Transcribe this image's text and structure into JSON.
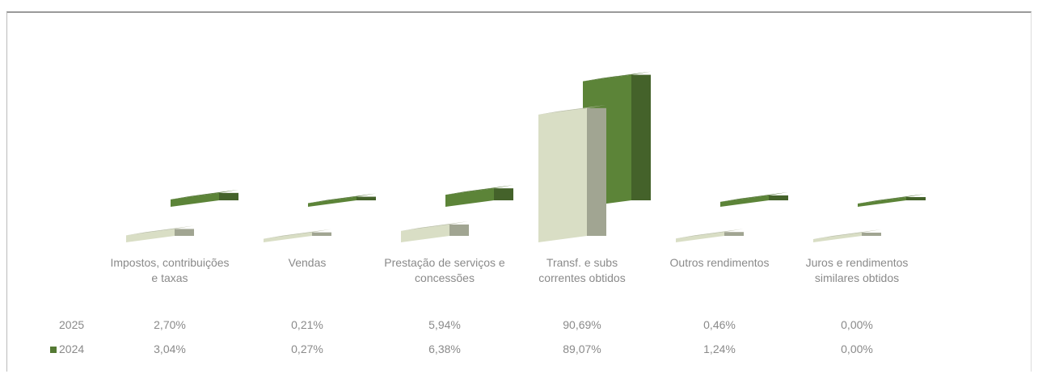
{
  "chart_data": {
    "type": "bar3d",
    "categories": [
      "Impostos, contribuições e taxas",
      "Vendas",
      "Prestação de serviços e concessões",
      "Transf. e subs correntes obtidos",
      "Outros rendimentos",
      "Juros e rendimentos similares obtidos"
    ],
    "series": [
      {
        "name": "2025",
        "color": "#c9ceb6",
        "values": [
          2.7,
          0.21,
          5.94,
          90.69,
          0.46,
          0.0
        ],
        "value_labels": [
          "2,70%",
          "0,21%",
          "5,94%",
          "90,69%",
          "0,46%",
          "0,00%"
        ]
      },
      {
        "name": "2024",
        "color": "#557a34",
        "values": [
          3.04,
          0.27,
          6.38,
          89.07,
          1.24,
          0.0
        ],
        "value_labels": [
          "3,04%",
          "0,27%",
          "6,38%",
          "89,07%",
          "1,24%",
          "0,00%"
        ]
      }
    ]
  }
}
